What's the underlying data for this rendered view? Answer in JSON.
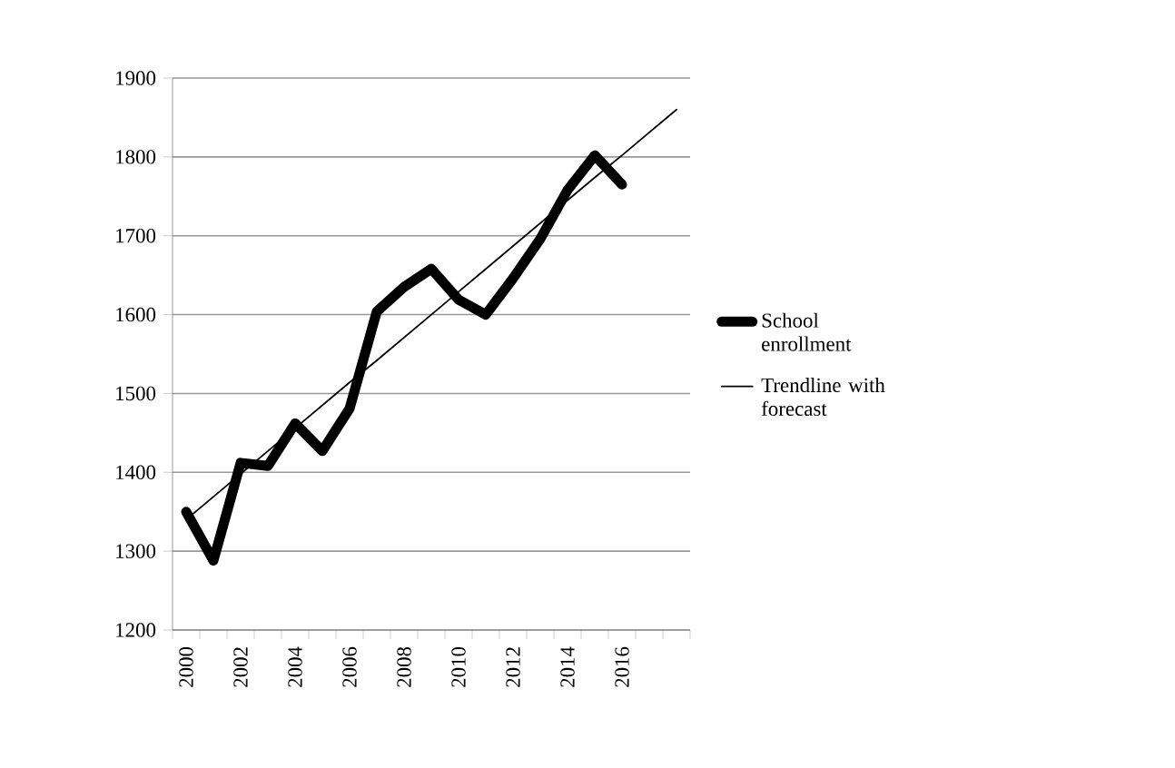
{
  "chart_data": {
    "type": "line",
    "categories": [
      "2000",
      null,
      "2002",
      null,
      "2004",
      null,
      "2006",
      null,
      "2008",
      null,
      "2010",
      null,
      "2012",
      null,
      "2014",
      null,
      "2016",
      null,
      null
    ],
    "series": [
      {
        "name": "School enrollment",
        "color": "#000000",
        "values": [
          1350,
          1288,
          1412,
          1408,
          1462,
          1427,
          1481,
          1604,
          1635,
          1658,
          1619,
          1600,
          1646,
          1696,
          1758,
          1802,
          1765,
          null,
          null
        ]
      },
      {
        "name": "Trendline with forecast",
        "color": "#000000",
        "values": [
          1340,
          1369,
          1398,
          1427,
          1456,
          1485,
          1514,
          1542,
          1571,
          1600,
          1629,
          1658,
          1687,
          1716,
          1745,
          1774,
          1802,
          1831,
          1860
        ]
      }
    ],
    "ylim": [
      1200,
      1900
    ],
    "yticks": [
      1200,
      1300,
      1400,
      1500,
      1600,
      1700,
      1800,
      1900
    ],
    "grid": "y",
    "legend": "right",
    "marker": "none",
    "line_style": "solid"
  }
}
